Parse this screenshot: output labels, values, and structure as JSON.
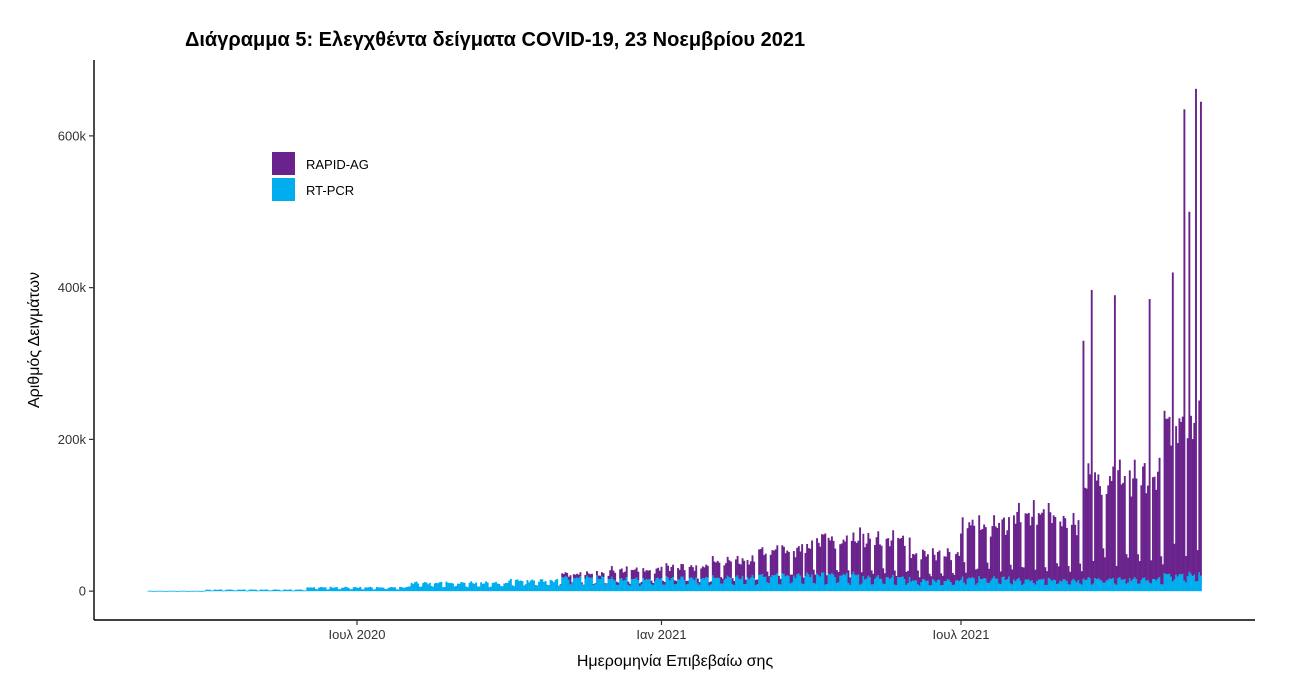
{
  "chart_data": {
    "type": "bar",
    "stacked": true,
    "title": "Διάγραμμα 5: Ελεγχθέντα δείγματα COVID-19, 23 Νοεμβρίου 2021",
    "xlabel": "Ημερομηνία Επιβεβαίω σης",
    "ylabel": "Αριθμός Δειγμάτων",
    "x_range": [
      "2020-02-26",
      "2021-11-23"
    ],
    "ylim": [
      -38000,
      700000
    ],
    "y_ticks": [
      {
        "value": 0,
        "label": "0"
      },
      {
        "value": 200000,
        "label": "200k"
      },
      {
        "value": 400000,
        "label": "400k"
      },
      {
        "value": 600000,
        "label": "600k"
      }
    ],
    "x_ticks": [
      {
        "date": "2020-07-01",
        "label": "Ιουλ 2020"
      },
      {
        "date": "2021-01-01",
        "label": "Ιαν 2021"
      },
      {
        "date": "2021-07-01",
        "label": "Ιουλ 2021"
      }
    ],
    "grid": false,
    "legend_position": "top-left",
    "series": [
      {
        "name": "RAPID-AG",
        "color": "#6a238c"
      },
      {
        "name": "RT-PCR",
        "color": "#00aeef"
      }
    ],
    "segments": [
      {
        "from": "2020-02-26",
        "to": "2020-03-31",
        "rtpcr_weekday": 500,
        "rtpcr_weekend": 300,
        "rapid_weekday": 0,
        "rapid_weekend": 0
      },
      {
        "from": "2020-04-01",
        "to": "2020-05-31",
        "rtpcr_weekday": 2000,
        "rtpcr_weekend": 900,
        "rapid_weekday": 0,
        "rapid_weekend": 0
      },
      {
        "from": "2020-06-01",
        "to": "2020-07-31",
        "rtpcr_weekday": 5000,
        "rtpcr_weekend": 2500,
        "rapid_weekday": 0,
        "rapid_weekend": 0
      },
      {
        "from": "2020-08-01",
        "to": "2020-09-30",
        "rtpcr_weekday": 11000,
        "rtpcr_weekend": 6000,
        "rapid_weekday": 0,
        "rapid_weekend": 0
      },
      {
        "from": "2020-10-01",
        "to": "2020-10-31",
        "rtpcr_weekday": 14000,
        "rtpcr_weekend": 8000,
        "rapid_weekday": 0,
        "rapid_weekend": 0
      },
      {
        "from": "2020-11-01",
        "to": "2020-11-30",
        "rtpcr_weekday": 18000,
        "rtpcr_weekend": 9000,
        "rapid_weekday": 5000,
        "rapid_weekend": 1000
      },
      {
        "from": "2020-12-01",
        "to": "2020-12-31",
        "rtpcr_weekday": 16000,
        "rtpcr_weekend": 8000,
        "rapid_weekday": 12000,
        "rapid_weekend": 3000
      },
      {
        "from": "2021-01-01",
        "to": "2021-01-31",
        "rtpcr_weekday": 17000,
        "rtpcr_weekend": 9000,
        "rapid_weekday": 15000,
        "rapid_weekend": 4000
      },
      {
        "from": "2021-02-01",
        "to": "2021-02-28",
        "rtpcr_weekday": 18000,
        "rtpcr_weekend": 9000,
        "rapid_weekday": 22000,
        "rapid_weekend": 6000
      },
      {
        "from": "2021-03-01",
        "to": "2021-03-31",
        "rtpcr_weekday": 21000,
        "rtpcr_weekend": 10000,
        "rapid_weekday": 33000,
        "rapid_weekend": 9000
      },
      {
        "from": "2021-04-01",
        "to": "2021-04-30",
        "rtpcr_weekday": 22000,
        "rtpcr_weekend": 10000,
        "rapid_weekday": 45000,
        "rapid_weekend": 12000
      },
      {
        "from": "2021-05-01",
        "to": "2021-05-31",
        "rtpcr_weekday": 18000,
        "rtpcr_weekend": 9000,
        "rapid_weekday": 50000,
        "rapid_weekend": 14000
      },
      {
        "from": "2021-06-01",
        "to": "2021-06-30",
        "rtpcr_weekday": 14000,
        "rtpcr_weekend": 8000,
        "rapid_weekday": 35000,
        "rapid_weekend": 12000
      },
      {
        "from": "2021-07-01",
        "to": "2021-07-31",
        "rtpcr_weekday": 17000,
        "rtpcr_weekend": 10000,
        "rapid_weekday": 70000,
        "rapid_weekend": 18000
      },
      {
        "from": "2021-08-01",
        "to": "2021-08-31",
        "rtpcr_weekday": 15000,
        "rtpcr_weekend": 9000,
        "rapid_weekday": 85000,
        "rapid_weekend": 20000
      },
      {
        "from": "2021-09-01",
        "to": "2021-09-12",
        "rtpcr_weekday": 14000,
        "rtpcr_weekend": 9000,
        "rapid_weekday": 75000,
        "rapid_weekend": 18000
      },
      {
        "from": "2021-09-13",
        "to": "2021-09-30",
        "rtpcr_weekday": 16000,
        "rtpcr_weekend": 10000,
        "rapid_weekday": 130000,
        "rapid_weekend": 30000
      },
      {
        "from": "2021-10-01",
        "to": "2021-10-31",
        "rtpcr_weekday": 16000,
        "rtpcr_weekend": 10000,
        "rapid_weekday": 135000,
        "rapid_weekend": 30000
      },
      {
        "from": "2021-11-01",
        "to": "2021-11-23",
        "rtpcr_weekday": 22000,
        "rtpcr_weekend": 13000,
        "rapid_weekday": 200000,
        "rapid_weekend": 40000
      }
    ],
    "peak_totals": [
      {
        "date": "2020-11-07",
        "total": 21000
      },
      {
        "date": "2021-02-20",
        "total": 40000
      },
      {
        "date": "2021-03-27",
        "total": 62000
      },
      {
        "date": "2021-04-10",
        "total": 76000
      },
      {
        "date": "2021-05-01",
        "total": 84000
      },
      {
        "date": "2021-07-24",
        "total": 90000
      },
      {
        "date": "2021-08-14",
        "total": 120000
      },
      {
        "date": "2021-09-13",
        "total": 330000
      },
      {
        "date": "2021-09-18",
        "total": 397000
      },
      {
        "date": "2021-10-02",
        "total": 390000
      },
      {
        "date": "2021-10-23",
        "total": 385000
      },
      {
        "date": "2021-11-06",
        "total": 420000
      },
      {
        "date": "2021-11-13",
        "total": 635000
      },
      {
        "date": "2021-11-16",
        "total": 500000
      },
      {
        "date": "2021-11-20",
        "total": 662000
      },
      {
        "date": "2021-11-23",
        "total": 645000
      }
    ]
  }
}
